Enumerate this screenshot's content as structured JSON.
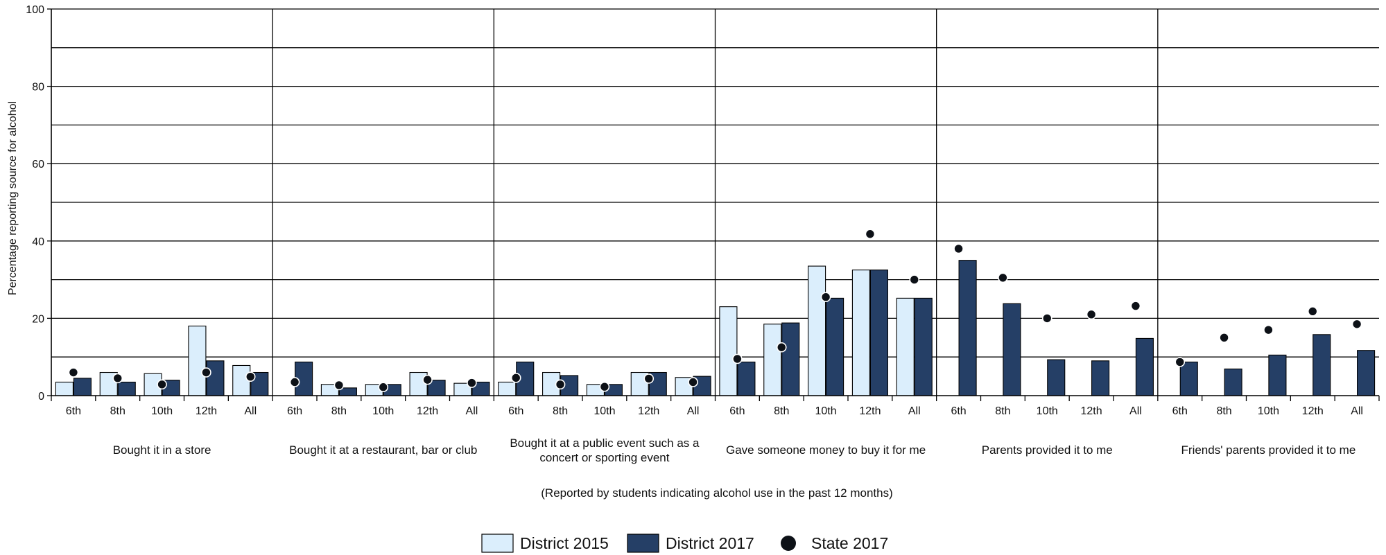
{
  "chart_data": {
    "type": "bar",
    "ylabel": "Percentage reporting source for alcohol",
    "xlabel": "(Reported by students indicating alcohol use in the past 12 months)",
    "ylim": [
      0,
      100
    ],
    "yticks": [
      0,
      20,
      40,
      60,
      80,
      100
    ],
    "grid": true,
    "legend_position": "bottom",
    "groups": [
      "Bought it in a store",
      "Bought it at a restaurant, bar or club",
      "Bought it at a public event such as a concert or sporting event",
      "Gave someone money to buy it for me",
      "Parents provided it to me",
      "Friends' parents provided it to me"
    ],
    "subcategories": [
      "6th",
      "8th",
      "10th",
      "12th",
      "All"
    ],
    "series": [
      {
        "name": "District 2015",
        "kind": "bar",
        "color": "#dbeefc",
        "values": [
          [
            3.5,
            6,
            5.7,
            18,
            7.8
          ],
          [
            null,
            2.9,
            2.9,
            6,
            3.2
          ],
          [
            3.5,
            6,
            2.9,
            6,
            4.7
          ],
          [
            23,
            18.5,
            33.5,
            32.5,
            25.2
          ],
          [
            null,
            null,
            null,
            null,
            null
          ],
          [
            null,
            null,
            null,
            null,
            null
          ]
        ]
      },
      {
        "name": "District 2017",
        "kind": "bar",
        "color": "#253f66",
        "values": [
          [
            4.5,
            3.5,
            4,
            9,
            6
          ],
          [
            8.7,
            2,
            2.9,
            4,
            3.5
          ],
          [
            8.7,
            5.2,
            2.9,
            6,
            5
          ],
          [
            8.7,
            18.8,
            25.2,
            32.5,
            25.2
          ],
          [
            35,
            23.8,
            9.3,
            9,
            14.8
          ],
          [
            8.7,
            6.9,
            10.5,
            15.8,
            11.7
          ]
        ]
      },
      {
        "name": "State 2017",
        "kind": "point",
        "color": "#0d1117",
        "values": [
          [
            6,
            4.5,
            2.9,
            6,
            4.9
          ],
          [
            3.5,
            2.7,
            2.2,
            4.1,
            3.3
          ],
          [
            4.6,
            2.9,
            2.3,
            4.4,
            3.5
          ],
          [
            9.5,
            12.5,
            25.5,
            41.8,
            30
          ],
          [
            38,
            30.5,
            20,
            21,
            23.2
          ],
          [
            8.7,
            15,
            17,
            21.8,
            18.5
          ]
        ]
      }
    ]
  }
}
